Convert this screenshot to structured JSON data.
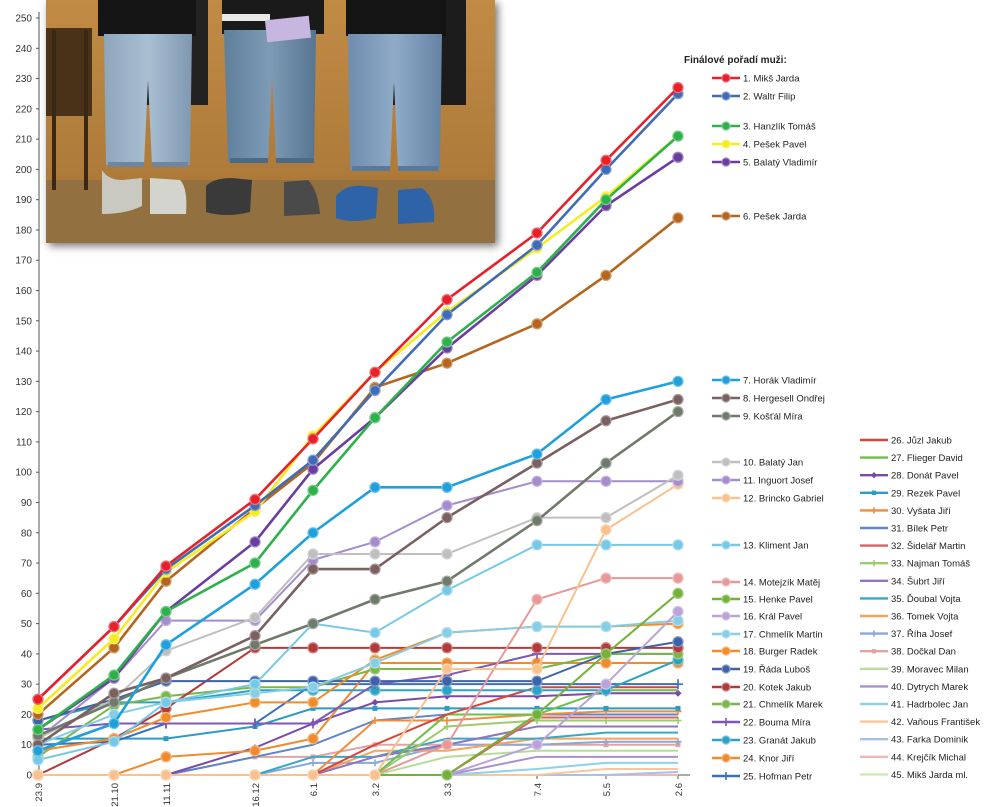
{
  "chart_data": {
    "type": "line",
    "title": "",
    "xlabel": "",
    "ylabel": "",
    "ylim": [
      0,
      250
    ],
    "yticks": [
      0,
      10,
      20,
      30,
      40,
      50,
      60,
      70,
      80,
      90,
      100,
      110,
      120,
      130,
      140,
      150,
      160,
      170,
      180,
      190,
      200,
      210,
      220,
      230,
      240,
      250
    ],
    "categories": [
      "23.9",
      "21.10",
      "11.11",
      "16.12",
      "6.1",
      "3.2",
      "3.3",
      "7.4",
      "5.5",
      "2.6"
    ],
    "legend_title": "Finálové pořadí muži:",
    "grid": false,
    "series": [
      {
        "name": "1. Mikš Jarda",
        "color": "#e8202a",
        "marker": "circle",
        "values": [
          25,
          49,
          69,
          91,
          111,
          133,
          157,
          179,
          203,
          227
        ]
      },
      {
        "name": "2. Waltr Filip",
        "color": "#3f6cb5",
        "marker": "circle",
        "values": [
          25,
          49,
          68,
          89,
          104,
          127,
          152,
          175,
          200,
          225
        ]
      },
      {
        "name": "3. Hanzlík Tomáš",
        "color": "#2db14a",
        "marker": "circle",
        "values": [
          15,
          33,
          54,
          70,
          94,
          118,
          143,
          166,
          190,
          211
        ]
      },
      {
        "name": "4. Pešek Pavel",
        "color": "#f5ec22",
        "marker": "circle",
        "values": [
          22,
          45,
          67,
          87,
          112,
          133,
          153,
          174,
          191,
          211
        ]
      },
      {
        "name": "5. Balatý Vladimír",
        "color": "#6a3ea0",
        "marker": "circle",
        "values": [
          15,
          32,
          54,
          77,
          101,
          118,
          141,
          165,
          188,
          204
        ]
      },
      {
        "name": "6. Pešek Jarda",
        "color": "#b5651d",
        "marker": "circle",
        "values": [
          20,
          42,
          64,
          88,
          103,
          128,
          136,
          149,
          165,
          184
        ]
      },
      {
        "name": "7. Horák Vladimír",
        "color": "#1ea0dc",
        "marker": "circle",
        "values": [
          8,
          17,
          43,
          63,
          80,
          95,
          95,
          106,
          124,
          130
        ]
      },
      {
        "name": "8. Hergesell Ondřej",
        "color": "#7a6060",
        "marker": "circle",
        "values": [
          10,
          27,
          32,
          46,
          68,
          68,
          85,
          103,
          117,
          124
        ]
      },
      {
        "name": "9. Košťál Míra",
        "color": "#6f7a6a",
        "marker": "circle",
        "values": [
          13,
          24,
          32,
          43,
          50,
          58,
          64,
          84,
          103,
          120
        ]
      },
      {
        "name": "10. Balatý Jan",
        "color": "#bfbfbf",
        "marker": "circle",
        "values": [
          12,
          25,
          41,
          52,
          73,
          73,
          73,
          85,
          85,
          99
        ]
      },
      {
        "name": "11. Inguort Josef",
        "color": "#a58ccc",
        "marker": "circle",
        "values": [
          12,
          32,
          51,
          51,
          71,
          77,
          89,
          97,
          97,
          97
        ]
      },
      {
        "name": "12. Brincko Gabriel",
        "color": "#f9c18e",
        "marker": "circle",
        "values": [
          0,
          0,
          0,
          0,
          0,
          0,
          35,
          35,
          81,
          96
        ]
      },
      {
        "name": "13. Kliment Jan",
        "color": "#76c9e6",
        "marker": "circle",
        "values": [
          5,
          11,
          24,
          30,
          50,
          47,
          61,
          76,
          76,
          76
        ]
      },
      {
        "name": "14. Motejzík Matěj",
        "color": "#e79898",
        "marker": "circle",
        "values": [
          0,
          0,
          0,
          0,
          0,
          0,
          10,
          58,
          65,
          65
        ]
      },
      {
        "name": "15. Henke Pavel",
        "color": "#73b13a",
        "marker": "circle",
        "values": [
          0,
          0,
          0,
          0,
          0,
          0,
          0,
          20,
          40,
          60
        ]
      },
      {
        "name": "16. Král Pavel",
        "color": "#b9a3d9",
        "marker": "circle",
        "values": [
          0,
          0,
          0,
          0,
          0,
          0,
          0,
          10,
          30,
          54
        ]
      },
      {
        "name": "17. Chmelík Martin",
        "color": "#86cde6",
        "marker": "circle",
        "values": [
          10,
          20,
          24,
          27,
          29,
          37,
          47,
          49,
          49,
          51
        ]
      },
      {
        "name": "18. Burger Radek",
        "color": "#f28c28",
        "marker": "circle",
        "values": [
          8,
          12,
          19,
          24,
          24,
          38,
          47,
          49,
          49,
          50
        ]
      },
      {
        "name": "19. Řáda Luboš",
        "color": "#3d62a8",
        "marker": "circle",
        "values": [
          18,
          25,
          31,
          31,
          31,
          31,
          31,
          31,
          40,
          44
        ]
      },
      {
        "name": "20. Kotek Jakub",
        "color": "#b23a3a",
        "marker": "circle",
        "values": [
          0,
          12,
          22,
          42,
          42,
          42,
          42,
          42,
          42,
          42
        ]
      },
      {
        "name": "21. Chmelík Marek",
        "color": "#7ab648",
        "marker": "circle",
        "values": [
          6,
          23,
          26,
          29,
          29,
          35,
          35,
          35,
          40,
          40
        ]
      },
      {
        "name": "22. Bouma Míra",
        "color": "#7e57b8",
        "marker": "plus",
        "values": [
          15,
          17,
          17,
          17,
          17,
          30,
          33,
          40,
          40,
          40
        ]
      },
      {
        "name": "23. Granát Jakub",
        "color": "#2aa3c4",
        "marker": "circle",
        "values": [
          18,
          24,
          24,
          28,
          28,
          28,
          28,
          28,
          28,
          38
        ]
      },
      {
        "name": "24. Knor Jiří",
        "color": "#f08a2c",
        "marker": "circle",
        "values": [
          0,
          0,
          6,
          8,
          12,
          37,
          37,
          37,
          37,
          37
        ]
      },
      {
        "name": "25. Hofman Petr",
        "color": "#3b6fbf",
        "marker": "plus",
        "values": [
          10,
          11,
          17,
          17,
          30,
          30,
          30,
          30,
          30,
          30
        ]
      },
      {
        "name": "26. Jůzl Jakub",
        "color": "#d9443a",
        "marker": "none",
        "values": [
          0,
          0,
          0,
          0,
          0,
          10,
          20,
          29,
          29,
          29
        ]
      },
      {
        "name": "27. Flieger David",
        "color": "#6cbf4a",
        "marker": "none",
        "values": [
          0,
          0,
          0,
          0,
          0,
          0,
          20,
          20,
          28,
          28
        ]
      },
      {
        "name": "28. Donát Pavel",
        "color": "#7b4aa8",
        "marker": "diamond",
        "values": [
          0,
          0,
          0,
          9,
          17,
          24,
          26,
          26,
          27,
          27
        ]
      },
      {
        "name": "29. Rezek Pavel",
        "color": "#2f9bc4",
        "marker": "square",
        "values": [
          12,
          12,
          12,
          16,
          22,
          22,
          22,
          22,
          22,
          22
        ]
      },
      {
        "name": "30. Vyšata Jiří",
        "color": "#f28a3b",
        "marker": "plus",
        "values": [
          0,
          0,
          0,
          0,
          0,
          18,
          18,
          20,
          21,
          21
        ]
      },
      {
        "name": "31. Bílek Petr",
        "color": "#5e86c8",
        "marker": "none",
        "values": [
          0,
          0,
          0,
          6,
          10,
          18,
          20,
          20,
          20,
          20
        ]
      },
      {
        "name": "32. Šidelář Martin",
        "color": "#d46464",
        "marker": "none",
        "values": [
          0,
          0,
          0,
          0,
          0,
          0,
          0,
          19,
          19,
          19
        ]
      },
      {
        "name": "33. Najman Tomáš",
        "color": "#9acd6a",
        "marker": "plus",
        "values": [
          0,
          0,
          0,
          0,
          0,
          0,
          16,
          18,
          18,
          18
        ]
      },
      {
        "name": "34. Šubrt Jiří",
        "color": "#8f74c1",
        "marker": "none",
        "values": [
          0,
          0,
          0,
          0,
          0,
          6,
          10,
          16,
          16,
          16
        ]
      },
      {
        "name": "35. Ďoubal Vojta",
        "color": "#3aa6c8",
        "marker": "none",
        "values": [
          0,
          0,
          0,
          0,
          6,
          6,
          12,
          12,
          14,
          14
        ]
      },
      {
        "name": "36. Tomek Vojta",
        "color": "#f5a35c",
        "marker": "none",
        "values": [
          0,
          0,
          0,
          0,
          0,
          8,
          8,
          12,
          12,
          12
        ]
      },
      {
        "name": "37. Říha Josef",
        "color": "#8aa8d8",
        "marker": "plus",
        "values": [
          0,
          0,
          0,
          0,
          4,
          4,
          10,
          10,
          11,
          11
        ]
      },
      {
        "name": "38. Dočkal Dan",
        "color": "#e2a3a3",
        "marker": "square",
        "values": [
          0,
          0,
          0,
          6,
          6,
          10,
          10,
          10,
          10,
          10
        ]
      },
      {
        "name": "39. Moravec Milan",
        "color": "#b6dd96",
        "marker": "none",
        "values": [
          0,
          0,
          0,
          0,
          0,
          0,
          6,
          8,
          8,
          8
        ]
      },
      {
        "name": "40. Dytrych Marek",
        "color": "#a991cf",
        "marker": "none",
        "values": [
          0,
          0,
          0,
          0,
          0,
          0,
          0,
          6,
          6,
          6
        ]
      },
      {
        "name": "41. Hadrbolec Jan",
        "color": "#8ed1e8",
        "marker": "none",
        "values": [
          0,
          0,
          0,
          0,
          0,
          0,
          0,
          2,
          4,
          4
        ]
      },
      {
        "name": "42. Vaňous František",
        "color": "#f9c59a",
        "marker": "none",
        "values": [
          0,
          0,
          0,
          0,
          0,
          0,
          0,
          0,
          2,
          2
        ]
      },
      {
        "name": "43. Farka Dominik",
        "color": "#a6c0e6",
        "marker": "none",
        "values": [
          0,
          0,
          0,
          0,
          0,
          0,
          0,
          0,
          0,
          1
        ]
      },
      {
        "name": "44. Krejčík Michal",
        "color": "#efb8b8",
        "marker": "none",
        "values": [
          0,
          0,
          0,
          0,
          0,
          0,
          0,
          0,
          0,
          0
        ]
      },
      {
        "name": "45. Mikš Jarda ml.",
        "color": "#cfe8b8",
        "marker": "none",
        "values": [
          0,
          0,
          0,
          0,
          0,
          0,
          0,
          0,
          0,
          0
        ]
      }
    ]
  },
  "photo": {
    "wall_color": "#b5823e",
    "floor_color": "#8a6a3e"
  }
}
